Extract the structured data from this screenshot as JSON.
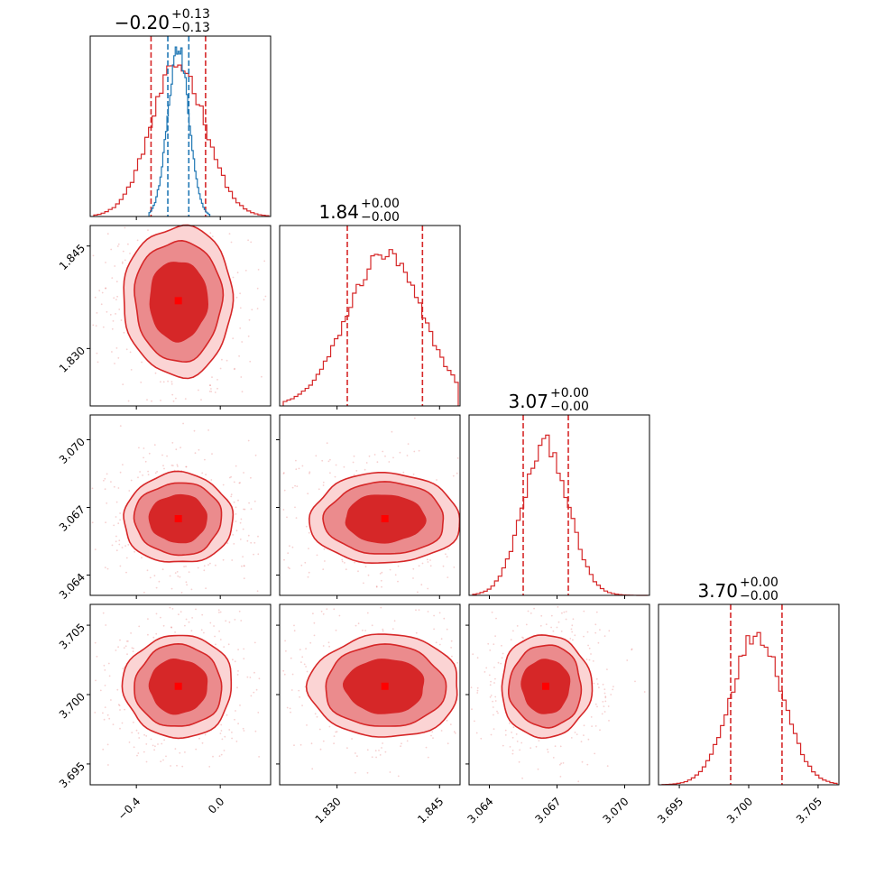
{
  "chart_data": {
    "type": "corner",
    "description_colors": {
      "primary": "#d62728",
      "secondary": "#1f77b4"
    },
    "parameters": [
      {
        "id": "p1",
        "median": -0.2,
        "title": {
          "main": "−0.20",
          "sup": "+0.13",
          "sub": "−0.13"
        },
        "quantiles": [
          -0.33,
          -0.07
        ],
        "range": [
          -0.62,
          0.24
        ],
        "ticks": [
          {
            "value": -0.4,
            "label": "−0.4"
          },
          {
            "value": 0.0,
            "label": "0.0"
          }
        ]
      },
      {
        "id": "p2",
        "median": 1.837,
        "title": {
          "main": "1.84",
          "sup": "+0.00",
          "sub": "−0.00"
        },
        "quantiles": [
          1.8315,
          1.8425
        ],
        "range": [
          1.8216,
          1.848
        ],
        "ticks": [
          {
            "value": 1.83,
            "label": "1.830"
          },
          {
            "value": 1.845,
            "label": "1.845"
          }
        ]
      },
      {
        "id": "p3",
        "median": 3.0665,
        "title": {
          "main": "3.07",
          "sup": "+0.00",
          "sub": "−0.00"
        },
        "quantiles": [
          3.0655,
          3.0675
        ],
        "range": [
          3.0631,
          3.0711
        ],
        "ticks": [
          {
            "value": 3.064,
            "label": "3.064"
          },
          {
            "value": 3.067,
            "label": "3.067"
          },
          {
            "value": 3.07,
            "label": "3.070"
          }
        ]
      },
      {
        "id": "p4",
        "median": 3.7006,
        "title": {
          "main": "3.70",
          "sup": "+0.00",
          "sub": "−0.00"
        },
        "quantiles": [
          3.6987,
          3.7024
        ],
        "range": [
          3.6935,
          3.7065
        ],
        "ticks": [
          {
            "value": 3.695,
            "label": "3.695"
          },
          {
            "value": 3.7,
            "label": "3.700"
          },
          {
            "value": 3.705,
            "label": "3.705"
          }
        ]
      }
    ],
    "secondary_first_param": {
      "color": "#1f77b4",
      "quantiles": [
        -0.25,
        -0.15
      ],
      "median": -0.2
    },
    "contour_levels": 3,
    "grid": false
  }
}
